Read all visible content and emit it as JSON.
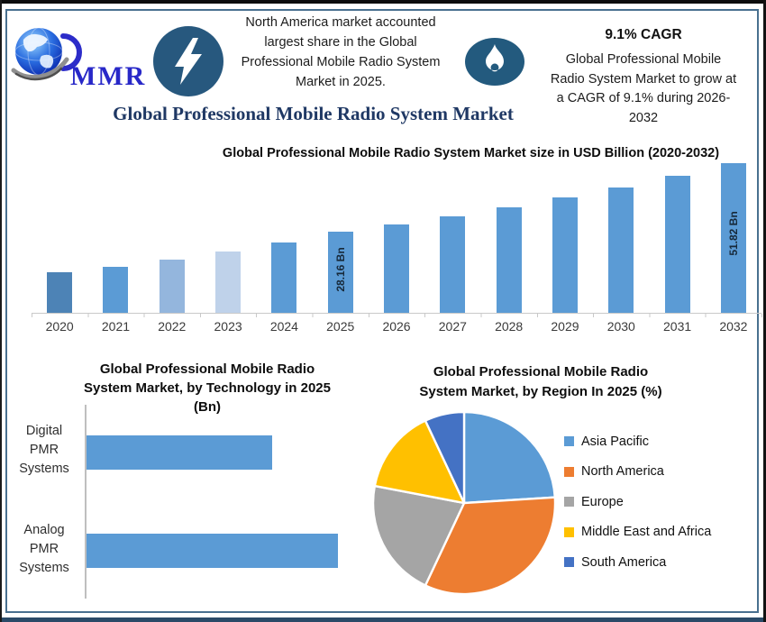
{
  "header": {
    "logo_text": "MMR",
    "na_note": "North America market accounted largest share in the Global Professional Mobile Radio System Market in 2025.",
    "na_note_lines": [
      "North America market accounted",
      "largest share in the Global",
      "Professional Mobile Radio System",
      "Market in 2025."
    ],
    "cagr_value": "9.1% CAGR",
    "cagr_note": "Global Professional Mobile Radio System Market to grow at a CAGR of 9.1% during 2026-2032",
    "cagr_note_lines": [
      "Global Professional Mobile",
      "Radio System Market to grow at",
      "a CAGR of 9.1% during 2026-",
      "2032"
    ],
    "icons": {
      "logo": "globe-icon",
      "left_badge": "lightning-bolt-icon",
      "right_badge": "flame-icon"
    }
  },
  "main_title": "Global Professional Mobile Radio System Market",
  "colors": {
    "accent_blue": "#5b9bd5",
    "navy_title": "#1f3864",
    "badge_circle": "#27587e",
    "inner_frame": "#49708f",
    "logo_blue": "#2828c8"
  },
  "chart_data": [
    {
      "type": "bar",
      "title": "Global Professional Mobile Radio System Market size in USD Billion (2020-2032)",
      "categories": [
        "2020",
        "2021",
        "2022",
        "2023",
        "2024",
        "2025",
        "2026",
        "2027",
        "2028",
        "2029",
        "2030",
        "2031",
        "2032"
      ],
      "values": [
        14.0,
        16.0,
        18.4,
        21.2,
        24.4,
        28.16,
        30.72,
        33.52,
        36.57,
        39.9,
        43.53,
        47.49,
        51.82
      ],
      "bar_labels": {
        "2025": "28.16 Bn",
        "2032": "51.82 Bn"
      },
      "bar_colors": [
        "#4d83b6",
        "#5b9bd5",
        "#94b6dd",
        "#bfd2ea",
        "#5b9bd5",
        "#5b9bd5",
        "#5b9bd5",
        "#5b9bd5",
        "#5b9bd5",
        "#5b9bd5",
        "#5b9bd5",
        "#5b9bd5",
        "#5b9bd5"
      ],
      "xlabel": "",
      "ylabel": "",
      "ylim": [
        0,
        51.82
      ],
      "grid": false,
      "y_axis_visible": false
    },
    {
      "type": "bar",
      "orientation": "horizontal",
      "title": "Global Professional Mobile Radio System Market, by Technology in 2025 (Bn)",
      "title_lines": [
        "Global Professional Mobile Radio",
        "System Market, by Technology in 2025",
        "(Bn)"
      ],
      "categories": [
        "Digital PMR Systems",
        "Analog PMR Systems"
      ],
      "relative_values": [
        0.74,
        1.0
      ],
      "bar_color": "#5b9bd5",
      "grid": false,
      "value_axis_visible": false
    },
    {
      "type": "pie",
      "title": "Global Professional Mobile Radio System Market, by Region In 2025 (%)",
      "title_lines": [
        "Global Professional Mobile Radio",
        "System Market, by Region In 2025 (%)"
      ],
      "labels": [
        "Asia Pacific",
        "North America",
        "Europe",
        "Middle East and Africa",
        "South America"
      ],
      "values": [
        24,
        33,
        21,
        15,
        7
      ],
      "colors": [
        "#5b9bd5",
        "#ed7d31",
        "#a5a5a5",
        "#ffc000",
        "#4472c4"
      ],
      "start_angle_deg": 0,
      "legend_position": "right"
    }
  ]
}
